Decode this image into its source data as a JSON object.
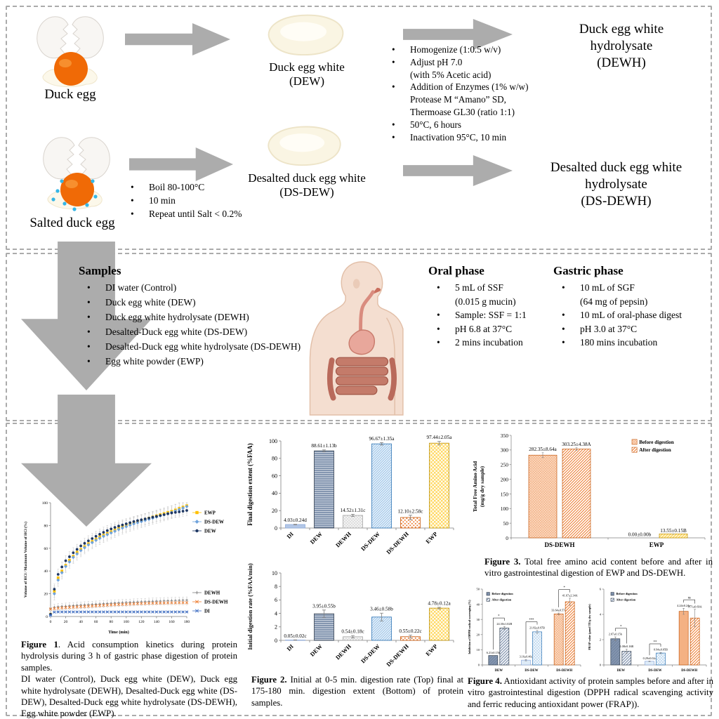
{
  "page": {
    "background": "#FFFFFF",
    "panel_border_color": "#ABABAB",
    "arrow_color": "#ACACAC"
  },
  "top_panel": {
    "duck_egg_label": "Duck egg",
    "salted_duck_egg_label": "Salted duck egg",
    "dew_label": "Duck egg white\n(DEW)",
    "ds_dew_label": "Desalted duck egg white\n(DS-DEW)",
    "dewh_label": "Duck egg white\nhydrolysate\n(DEWH)",
    "ds_dewh_label": "Desalted duck egg white\nhydrolysate\n(DS-DEWH)",
    "hydrolysis_steps": [
      "Homogenize (1:0.5 w/v)",
      "Adjust pH 7.0\n(with 5% Acetic acid)",
      "Addition of Enzymes (1% w/w)\nProtease M “Amano” SD,\nThermoase GL30 (ratio 1:1)",
      "50°C, 6 hours",
      "Inactivation 95°C, 10 min"
    ],
    "desalting_steps": [
      "Boil 80-100°C",
      "10 min",
      "Repeat until Salt < 0.2%"
    ]
  },
  "middle_panel": {
    "samples_title": "Samples",
    "samples": [
      "DI water (Control)",
      "Duck egg white (DEW)",
      "Duck egg white hydrolysate (DEWH)",
      "Desalted-Duck egg white (DS-DEW)",
      "Desalted-Duck egg white hydrolysate (DS-DEWH)",
      "Egg white powder (EWP)"
    ],
    "oral_title": "Oral phase",
    "oral_steps": [
      "5 mL of SSF\n(0.015 g mucin)",
      "Sample: SSF = 1:1",
      "pH 6.8 at 37°C",
      "2 mins incubation"
    ],
    "gastric_title": "Gastric phase",
    "gastric_steps": [
      "10 mL of SGF\n(64 mg of pepsin)",
      "10 mL of oral-phase digest",
      "pH 3.0 at 37°C",
      "180 mins incubation"
    ]
  },
  "figures": {
    "fig1": {
      "lead": "Figure 1",
      "rest": ". Acid consumption kinetics during protein hydrolysis during 3 h of gastric phase digestion of protein samples.",
      "note": "DI water (Control), Duck egg white (DEW), Duck egg white hydrolysate (DEWH), Desalted-Duck egg white (DS-DEW), Desalted-Duck egg white hydrolysate (DS-DEWH), Egg white powder (EWP)."
    },
    "fig2": {
      "lead": "Figure 2.",
      "rest": " Initial at 0-5 min. digestion rate (Top) final at 175-180 min. digestion extent (Bottom) of protein samples."
    },
    "fig3": {
      "lead": "Figure 3.",
      "rest": " Total free amino acid content before and after in vitro gastrointestinal digestion of EWP and DS-DEWH."
    },
    "fig4": {
      "lead": "Figure 4.",
      "rest": " Antioxidant activity of protein samples before and after in vitro gastrointestinal digestion (DPPH radical scavenging activity and  ferric reducing antioxidant power (FRAP))."
    }
  },
  "chart_data": [
    {
      "type": "line",
      "xlabel": "Time (min)",
      "ylabel": "Volume of HCl / Maximum Volume of HCl (%)",
      "xlim": [
        0,
        180
      ],
      "ylim": [
        0,
        100
      ],
      "xticks": [
        0,
        20,
        40,
        60,
        80,
        100,
        120,
        140,
        160,
        180
      ],
      "yticks": [
        0,
        20,
        40,
        60,
        80,
        100
      ],
      "x": [
        0,
        5,
        10,
        15,
        20,
        25,
        30,
        35,
        40,
        45,
        50,
        55,
        60,
        65,
        70,
        75,
        80,
        85,
        90,
        95,
        100,
        105,
        110,
        115,
        120,
        125,
        130,
        135,
        140,
        145,
        150,
        155,
        160,
        165,
        170,
        175,
        180
      ],
      "legend_top": [
        0,
        1,
        2
      ],
      "legend_bottom": [
        3,
        4,
        5
      ],
      "series": [
        {
          "name": "EWP",
          "marker": "square",
          "color": "#FFC000",
          "err": 5,
          "values": [
            2,
            22,
            34,
            40,
            45,
            49.5,
            53,
            56.5,
            59,
            61.5,
            64,
            66,
            68,
            70,
            71.5,
            73,
            74.5,
            76,
            77.5,
            79,
            80,
            81.3,
            82.5,
            83.5,
            84.5,
            85.5,
            86.5,
            87.5,
            88.5,
            89.5,
            90.5,
            91.5,
            92.5,
            93.7,
            95,
            96.2,
            97.4
          ]
        },
        {
          "name": "DS-DEW",
          "marker": "diamond",
          "color": "#6FA3DC",
          "err": 5.5,
          "values": [
            1.5,
            20,
            32,
            38.5,
            44,
            48,
            52,
            55,
            58,
            60.5,
            63,
            65,
            67,
            68.8,
            70.5,
            72,
            73.5,
            75,
            76.5,
            77.8,
            79,
            80.3,
            81.5,
            82.5,
            83.5,
            84.5,
            85.5,
            86.5,
            87.5,
            88.5,
            89.5,
            90.5,
            91.5,
            92.8,
            94,
            95.3,
            96.7
          ]
        },
        {
          "name": "DEW",
          "marker": "circle",
          "color": "#1F3864",
          "err": 4.5,
          "values": [
            2,
            24,
            37,
            43.5,
            49,
            52.5,
            56,
            59,
            62,
            64.3,
            66.5,
            68.5,
            70.5,
            72.3,
            74,
            75.5,
            77,
            78.3,
            79.5,
            80.5,
            81.5,
            82.5,
            83.5,
            84.3,
            85,
            85.8,
            86.5,
            87.3,
            88,
            88.8,
            89.5,
            90.3,
            91,
            91.5,
            92,
            92.6,
            93.2
          ]
        },
        {
          "name": "DEWH",
          "marker": "plus",
          "color": "#7F7F7F",
          "err": 2.8,
          "values": [
            7,
            8,
            8.5,
            8.8,
            9,
            9.3,
            9.5,
            9.8,
            10,
            10.2,
            10.4,
            10.6,
            10.8,
            11,
            11.2,
            11.4,
            11.6,
            11.8,
            12,
            12.2,
            12.4,
            12.5,
            12.7,
            12.8,
            13,
            13.1,
            13.3,
            13.4,
            13.5,
            13.6,
            13.8,
            13.9,
            14,
            14.1,
            14.2,
            14.3,
            14.4
          ]
        },
        {
          "name": "DS-DEWH",
          "marker": "x",
          "color": "#ED7D31",
          "err": 1.8,
          "values": [
            6.5,
            7,
            7.3,
            7.6,
            7.8,
            8,
            8.2,
            8.4,
            8.6,
            8.8,
            9,
            9.2,
            9.4,
            9.6,
            9.8,
            10,
            10.2,
            10.4,
            10.5,
            10.7,
            10.8,
            11,
            11.1,
            11.3,
            11.4,
            11.5,
            11.6,
            11.7,
            11.8,
            11.9,
            11.9,
            12,
            12,
            12,
            12.1,
            12.1,
            12.1
          ]
        },
        {
          "name": "DI",
          "marker": "asterisk",
          "color": "#4472C4",
          "err": 0.5,
          "values": [
            1,
            3.8,
            4,
            4,
            4,
            4,
            4,
            4,
            4,
            4,
            4,
            4,
            4,
            4,
            4,
            4,
            4,
            4,
            4,
            4,
            4,
            4,
            4,
            4,
            4,
            4,
            4,
            4,
            4,
            4,
            4,
            4,
            4,
            4,
            4,
            4,
            4
          ]
        }
      ]
    },
    {
      "type": "bar",
      "ylabel": "Final digestion extent (%FAA)",
      "ylim": [
        0,
        100
      ],
      "yticks": [
        0,
        20,
        40,
        60,
        80,
        100
      ],
      "categories": [
        "DI",
        "DEW",
        "DEWH",
        "DS-DEW",
        "DS-DEWH",
        "EWP"
      ],
      "values": [
        4.03,
        88.61,
        14.52,
        96.67,
        12.1,
        97.44
      ],
      "errors": [
        0.24,
        1.13,
        1.31,
        1.35,
        2.58,
        2.05
      ],
      "labels": [
        "4.03±0.24d",
        "88.61±1.13b",
        "14.52±1.31c",
        "96.67±1.35a",
        "12.10±2.58c",
        "97.44±2.05a"
      ],
      "styles": [
        {
          "fill": "#B4C7E7",
          "stroke": "#8EAADB"
        },
        {
          "fill": "hstripe",
          "stroke": "#323F4F"
        },
        {
          "fill": "graydots",
          "stroke": "#A6A6A6"
        },
        {
          "fill": "bluehatch",
          "stroke": "#2E74B5"
        },
        {
          "fill": "orangedots",
          "stroke": "#C55A11"
        },
        {
          "fill": "yellowcheck",
          "stroke": "#BF9000"
        }
      ]
    },
    {
      "type": "bar",
      "ylabel": "Initial digestion rate (%FAA/min)",
      "ylim": [
        0,
        10
      ],
      "yticks": [
        0,
        2,
        4,
        6,
        8,
        10
      ],
      "categories": [
        "DI",
        "DEW",
        "DEWH",
        "DS-DEW",
        "DS-DEWH",
        "EWP"
      ],
      "values": [
        0.05,
        3.95,
        0.54,
        3.46,
        0.55,
        4.78
      ],
      "errors": [
        0.02,
        0.55,
        0.18,
        0.58,
        0.22,
        0.12
      ],
      "labels": [
        "0.05±0.02c",
        "3.95±0.55b",
        "0.54±0.18c",
        "3.46±0.58b",
        "0.55±0.22c",
        "4.78±0.12a"
      ],
      "styles": [
        {
          "fill": "#B4C7E7",
          "stroke": "#8EAADB"
        },
        {
          "fill": "hstripe",
          "stroke": "#323F4F"
        },
        {
          "fill": "graydots",
          "stroke": "#A6A6A6"
        },
        {
          "fill": "bluehatch",
          "stroke": "#2E74B5"
        },
        {
          "fill": "orangedots",
          "stroke": "#C55A11"
        },
        {
          "fill": "yellowcheck",
          "stroke": "#BF9000"
        }
      ]
    },
    {
      "type": "grouped_bar",
      "ylabel": [
        "Total Free Amino Acid",
        "(mg/g dry sample)"
      ],
      "ylim": [
        0,
        350
      ],
      "yticks": [
        0,
        50,
        100,
        150,
        200,
        250,
        300,
        350
      ],
      "categories": [
        "DS-DEWH",
        "EWP"
      ],
      "legend": [
        "Before digestion",
        "After digestion"
      ],
      "legend_styles": [
        {
          "fill": "orangecross",
          "stroke": "#C55A11"
        },
        {
          "fill": "orangehatch",
          "stroke": "#C55A11"
        }
      ],
      "series": [
        {
          "name": "Before digestion",
          "values": [
            282.35,
            0.0
          ],
          "errors": [
            8.64,
            0
          ],
          "labels": [
            "282.35±8.64a",
            "0.00±0.00b"
          ],
          "styles": [
            {
              "fill": "orangecross",
              "stroke": "#C55A11"
            },
            {
              "fill": "orangecross",
              "stroke": "#C55A11"
            }
          ]
        },
        {
          "name": "After digestion",
          "values": [
            303.25,
            13.55
          ],
          "errors": [
            4.38,
            0.15
          ],
          "labels": [
            "303.25±4.38A",
            "13.55±0.15B"
          ],
          "styles": [
            {
              "fill": "orangehatch",
              "stroke": "#C55A11"
            },
            {
              "fill": "yellowhatch",
              "stroke": "#BF9000"
            }
          ]
        }
      ]
    },
    {
      "type": "grouped_bar",
      "ylabel": [
        "Inhibition of DPPH radical scavenging (%)"
      ],
      "ylim": [
        0,
        50
      ],
      "yticks": [
        0,
        10,
        20,
        30,
        40,
        50
      ],
      "categories": [
        "DEW",
        "DS-DEW",
        "DS-DEWH"
      ],
      "legend": [
        "Before digestion",
        "After digestion"
      ],
      "legend_styles": [
        {
          "fill": "slatesolid",
          "stroke": "#323F4F"
        },
        {
          "fill": "slatehatch",
          "stroke": "#323F4F"
        }
      ],
      "sig": [
        "*",
        "***",
        "*"
      ],
      "series": [
        {
          "name": "Before digestion",
          "values": [
            6.21,
            3.16,
            33.64
          ],
          "errors": [
            0.15,
            0.46,
            0.57
          ],
          "labels": [
            "6.21±0.15b",
            "3.16±0.46c",
            "33.64±0.57a"
          ],
          "styles": [
            {
              "fill": "slatesolid",
              "stroke": "#323F4F"
            },
            {
              "fill": "#DEEBF7",
              "stroke": "#8EAADB"
            },
            {
              "fill": "orangecross",
              "stroke": "#C55A11"
            }
          ]
        },
        {
          "name": "After digestion",
          "values": [
            24.3,
            21.82,
            41.67
          ],
          "errors": [
            1.02,
            0.97,
            2.34
          ],
          "labels": [
            "24.30±1.02B",
            "21.82±0.97B",
            "41.67±2.34A"
          ],
          "styles": [
            {
              "fill": "slatehatch",
              "stroke": "#323F4F"
            },
            {
              "fill": "bluecross",
              "stroke": "#2E74B5"
            },
            {
              "fill": "orangehatch",
              "stroke": "#C55A11"
            }
          ]
        }
      ]
    },
    {
      "type": "grouped_bar",
      "ylabel": [
        "FRAP value (µmol TE/g dry sample)"
      ],
      "ylim": [
        0,
        6
      ],
      "yticks": [
        0,
        2,
        4,
        6
      ],
      "categories": [
        "DEW",
        "DS-DEW",
        "DS-DEWH"
      ],
      "legend": [
        "Before digestion",
        "After digestion"
      ],
      "legend_styles": [
        {
          "fill": "slatesolid",
          "stroke": "#323F4F"
        },
        {
          "fill": "slatehatch",
          "stroke": "#323F4F"
        }
      ],
      "sig": [
        "*",
        "**",
        "ns"
      ],
      "series": [
        {
          "name": "Before digestion",
          "values": [
            2.07,
            0.29,
            4.24
          ],
          "errors": [
            0.15,
            0.02,
            0.24
          ],
          "labels": [
            "2.07±0.15b",
            "0.29±0.02c",
            "4.24±0.24a"
          ],
          "styles": [
            {
              "fill": "slatesolid",
              "stroke": "#323F4F"
            },
            {
              "fill": "#DEEBF7",
              "stroke": "#8EAADB"
            },
            {
              "fill": "#F4B183",
              "stroke": "#C55A11"
            }
          ]
        },
        {
          "name": "After digestion",
          "values": [
            1.08,
            0.94,
            3.71
          ],
          "errors": [
            0.16,
            0.05,
            0.69
          ],
          "labels": [
            "1.08±0.16B",
            "0.94±0.05B",
            "3.71±0.69A"
          ],
          "styles": [
            {
              "fill": "slatehatch",
              "stroke": "#323F4F"
            },
            {
              "fill": "bluecross",
              "stroke": "#2E74B5"
            },
            {
              "fill": "orangehatch",
              "stroke": "#C55A11"
            }
          ]
        }
      ]
    }
  ]
}
